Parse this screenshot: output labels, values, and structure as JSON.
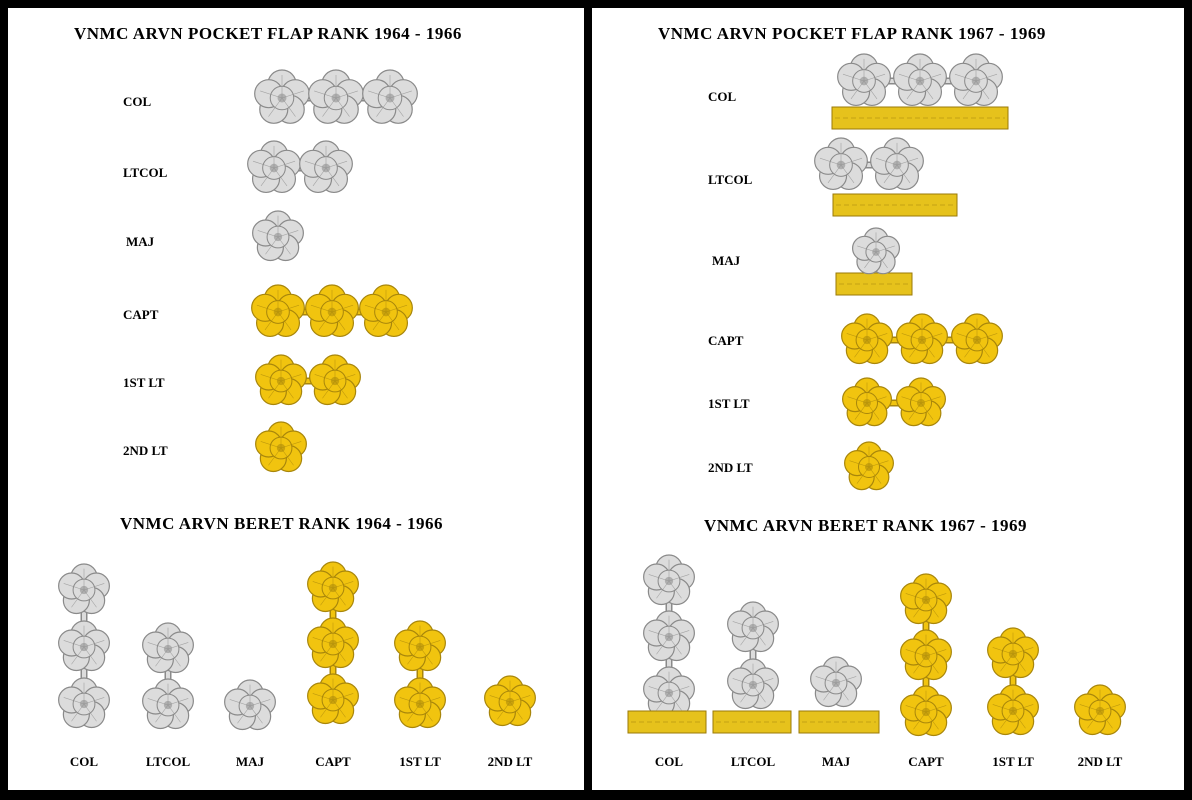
{
  "left": {
    "flap_title": "VNMC  ARVN  POCKET  FLAP  RANK  1964 - 1966",
    "beret_title": "VNMC  ARVN  BERET  RANK  1964 - 1966"
  },
  "right": {
    "flap_title": "VNMC  ARVN  POCKET  FLAP  RANK  1967 - 1969",
    "beret_title": "VNMC  ARVN  BERET  RANK  1967 - 1969"
  },
  "ranks": [
    "COL",
    "LTCOL",
    "MAJ",
    "CAPT",
    "1ST LT",
    "2ND LT"
  ],
  "insignia": [
    {
      "rank": "COL",
      "blossoms": 3,
      "metal": "silver"
    },
    {
      "rank": "LTCOL",
      "blossoms": 2,
      "metal": "silver"
    },
    {
      "rank": "MAJ",
      "blossoms": 1,
      "metal": "silver"
    },
    {
      "rank": "CAPT",
      "blossoms": 3,
      "metal": "gold"
    },
    {
      "rank": "1ST LT",
      "blossoms": 2,
      "metal": "gold"
    },
    {
      "rank": "2ND LT",
      "blossoms": 1,
      "metal": "gold"
    }
  ],
  "colors": {
    "silver_fill": "#dcdcdc",
    "silver_edge": "#8a8a8a",
    "gold_fill": "#f1c40f",
    "gold_edge": "#a8860b",
    "bar_fill": "#e6c21c",
    "bar_edge": "#9a7a08",
    "frame": "#000000",
    "panel": "#ffffff"
  }
}
